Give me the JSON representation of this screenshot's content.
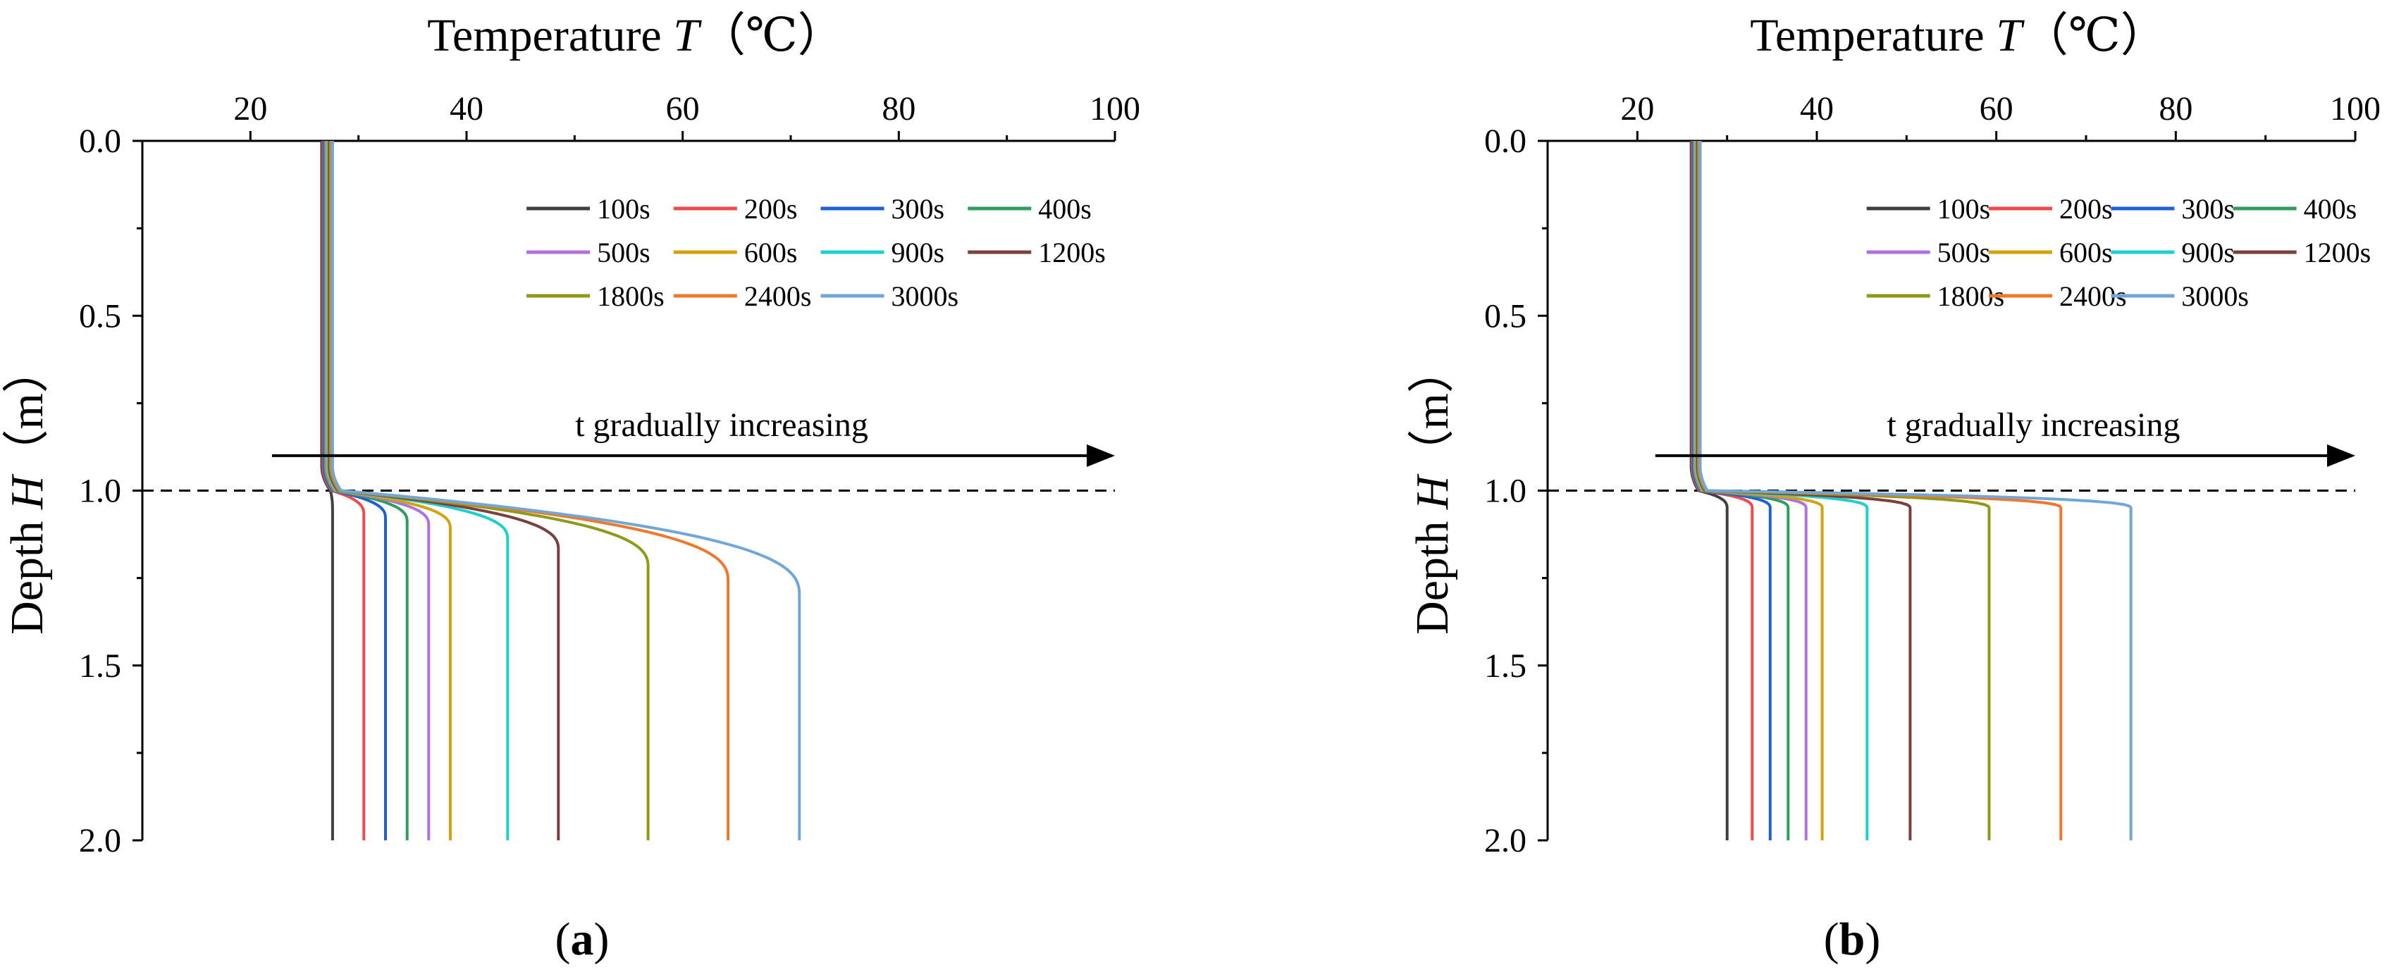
{
  "chart_data": [
    {
      "panel": "a",
      "type": "line",
      "caption_open": "(",
      "caption_letter": "a",
      "caption_close": ")",
      "xlabel_text": "Temperature ",
      "xlabel_symbol": "T",
      "xlabel_unit": "（℃）",
      "ylabel_text": "Depth ",
      "ylabel_symbol": "H",
      "ylabel_unit": "（m）",
      "xlim": [
        10,
        100
      ],
      "ylim": [
        0,
        2
      ],
      "x_ticks": [
        20,
        40,
        60,
        80,
        100
      ],
      "y_ticks": [
        0.0,
        0.5,
        1.0,
        1.5,
        2.0
      ],
      "x_tick_labels": [
        "20",
        "40",
        "60",
        "80",
        "100"
      ],
      "y_tick_labels": [
        "0.0",
        "0.5",
        "1.0",
        "1.5",
        "2.0"
      ],
      "reference_line_depth": 1.0,
      "arrow": {
        "label": "t gradually increasing",
        "from_x": 22,
        "to_x": 100,
        "depth": 0.9
      },
      "legend_placement": "top-right",
      "series": [
        {
          "name": "100s",
          "color": "#404040",
          "top_temp": 26.6,
          "bottom_temp": 27.6,
          "width": 0.06,
          "tail": 0.05
        },
        {
          "name": "200s",
          "color": "#f04a4a",
          "top_temp": 26.7,
          "bottom_temp": 30.5,
          "width": 0.07,
          "tail": 0.08
        },
        {
          "name": "300s",
          "color": "#1f5fd6",
          "top_temp": 26.8,
          "bottom_temp": 32.5,
          "width": 0.08,
          "tail": 0.1
        },
        {
          "name": "400s",
          "color": "#2e9e5b",
          "top_temp": 26.9,
          "bottom_temp": 34.5,
          "width": 0.09,
          "tail": 0.12
        },
        {
          "name": "500s",
          "color": "#b070e0",
          "top_temp": 27.0,
          "bottom_temp": 36.5,
          "width": 0.1,
          "tail": 0.15
        },
        {
          "name": "600s",
          "color": "#d4a20a",
          "top_temp": 27.1,
          "bottom_temp": 38.5,
          "width": 0.11,
          "tail": 0.18
        },
        {
          "name": "900s",
          "color": "#1fcfcf",
          "top_temp": 27.2,
          "bottom_temp": 43.8,
          "width": 0.14,
          "tail": 0.25
        },
        {
          "name": "1200s",
          "color": "#7a3f3f",
          "top_temp": 27.3,
          "bottom_temp": 48.5,
          "width": 0.17,
          "tail": 0.3
        },
        {
          "name": "1800s",
          "color": "#8f9a18",
          "top_temp": 27.4,
          "bottom_temp": 56.8,
          "width": 0.22,
          "tail": 0.38
        },
        {
          "name": "2400s",
          "color": "#f0782a",
          "top_temp": 27.5,
          "bottom_temp": 64.2,
          "width": 0.26,
          "tail": 0.42
        },
        {
          "name": "3000s",
          "color": "#6fa8d8",
          "top_temp": 27.6,
          "bottom_temp": 70.8,
          "width": 0.3,
          "tail": 0.45
        }
      ]
    },
    {
      "panel": "b",
      "type": "line",
      "caption_open": "(",
      "caption_letter": "b",
      "caption_close": ")",
      "xlabel_text": "Temperature ",
      "xlabel_symbol": "T",
      "xlabel_unit": "（℃）",
      "ylabel_text": "Depth ",
      "ylabel_symbol": "H",
      "ylabel_unit": "（m）",
      "xlim": [
        10,
        100
      ],
      "ylim": [
        0,
        2
      ],
      "x_ticks": [
        20,
        40,
        60,
        80,
        100
      ],
      "y_ticks": [
        0.0,
        0.5,
        1.0,
        1.5,
        2.0
      ],
      "x_tick_labels": [
        "20",
        "40",
        "60",
        "80",
        "100"
      ],
      "y_tick_labels": [
        "0.0",
        "0.5",
        "1.0",
        "1.5",
        "2.0"
      ],
      "reference_line_depth": 1.0,
      "arrow": {
        "label": "t gradually increasing",
        "from_x": 22,
        "to_x": 100,
        "depth": 0.9
      },
      "legend_placement": "top-right",
      "series": [
        {
          "name": "100s",
          "color": "#404040",
          "top_temp": 26.0,
          "bottom_temp": 30.0,
          "width": 0.05,
          "tail": 0.03
        },
        {
          "name": "200s",
          "color": "#f04a4a",
          "top_temp": 26.1,
          "bottom_temp": 32.8,
          "width": 0.05,
          "tail": 0.03
        },
        {
          "name": "300s",
          "color": "#1f5fd6",
          "top_temp": 26.2,
          "bottom_temp": 34.8,
          "width": 0.05,
          "tail": 0.03
        },
        {
          "name": "400s",
          "color": "#2e9e5b",
          "top_temp": 26.3,
          "bottom_temp": 36.8,
          "width": 0.05,
          "tail": 0.03
        },
        {
          "name": "500s",
          "color": "#b070e0",
          "top_temp": 26.4,
          "bottom_temp": 38.8,
          "width": 0.05,
          "tail": 0.03
        },
        {
          "name": "600s",
          "color": "#d4a20a",
          "top_temp": 26.5,
          "bottom_temp": 40.6,
          "width": 0.05,
          "tail": 0.03
        },
        {
          "name": "900s",
          "color": "#1fcfcf",
          "top_temp": 26.6,
          "bottom_temp": 45.6,
          "width": 0.05,
          "tail": 0.03
        },
        {
          "name": "1200s",
          "color": "#7a3f3f",
          "top_temp": 26.7,
          "bottom_temp": 50.4,
          "width": 0.05,
          "tail": 0.03
        },
        {
          "name": "1800s",
          "color": "#8f9a18",
          "top_temp": 26.8,
          "bottom_temp": 59.2,
          "width": 0.05,
          "tail": 0.03
        },
        {
          "name": "2400s",
          "color": "#f0782a",
          "top_temp": 26.9,
          "bottom_temp": 67.2,
          "width": 0.05,
          "tail": 0.03
        },
        {
          "name": "3000s",
          "color": "#6fa8d8",
          "top_temp": 27.0,
          "bottom_temp": 75.0,
          "width": 0.05,
          "tail": 0.03
        }
      ]
    }
  ]
}
